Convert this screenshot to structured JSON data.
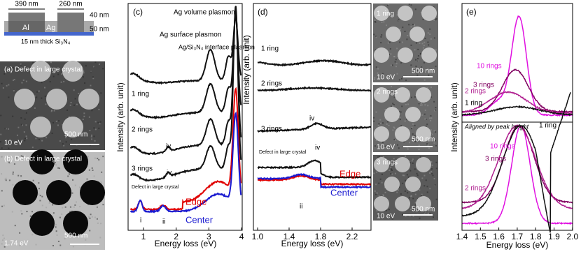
{
  "schematic": {
    "width_left": "390 nm",
    "width_right": "260 nm",
    "height_top": "40 nm",
    "height_bottom": "50 nm",
    "metal_left": "Al",
    "metal_right": "Ag",
    "substrate": "15 nm thick Si₃N₄"
  },
  "panel_a": {
    "label": "(a) Defect in large crystal",
    "energy": "10 eV",
    "scale": "500 nm"
  },
  "panel_b": {
    "label": "(b) Defect in large crystal",
    "energy": "1.74 eV",
    "scale": "500 nm"
  },
  "panel_c": {
    "label": "(c)",
    "y_axis": "Intensity (arb. unit)",
    "x_axis": "Energy loss (eV)",
    "xticks": [
      "1",
      "2",
      "3",
      "4"
    ],
    "annotations": {
      "volume": "Ag volume plasmon",
      "surface": "Ag surface plasmon",
      "interface": "Ag/Si₃N₄ interface plasmon",
      "ring1": "1 ring",
      "ring2": "2 rings",
      "ring3": "3 rings",
      "defect": "Defect in large crystal",
      "iv_a": "iv",
      "iv_b": "iv",
      "edge": "Edge",
      "center": "Center",
      "i": "i",
      "ii": "ii"
    }
  },
  "panel_d": {
    "label": "(d)",
    "y_axis": "Intensity (arb. unit)",
    "x_axis": "Energy loss (eV)",
    "xticks": [
      "1.0",
      "1.4",
      "1.8",
      "2.2"
    ],
    "annotations": {
      "ring1": "1 ring",
      "ring2": "2 rings",
      "ring3": "3 rings",
      "defect": "Defect in large crystal",
      "iv_a": "iv",
      "iv_b": "iv",
      "edge": "Edge",
      "center": "Center",
      "ii": "ii"
    },
    "images": [
      {
        "label": "1 ring",
        "energy": "10 eV",
        "scale": "500 nm"
      },
      {
        "label": "2 rings",
        "energy": "10 eV",
        "scale": "500 nm"
      },
      {
        "label": "3 rings",
        "energy": "10 eV",
        "scale": "500 nm"
      }
    ]
  },
  "panel_e": {
    "label": "(e)",
    "y_axis": "Intensity (arb. unit)",
    "x_axis": "Energy loss (eV)",
    "xticks": [
      "1.4",
      "1.5",
      "1.6",
      "1.7",
      "1.8",
      "1.9",
      "2.0"
    ],
    "annotations": {
      "rings10": "10 rings",
      "rings3": "3 rings",
      "rings2": "2 rings",
      "ring1": "1 ring",
      "aligned": "Aligned by peak height",
      "ring1_b": "1 ring",
      "rings10_b": "10 rings",
      "rings3_b": "3 rings",
      "rings2_b": "2 rings"
    }
  }
}
